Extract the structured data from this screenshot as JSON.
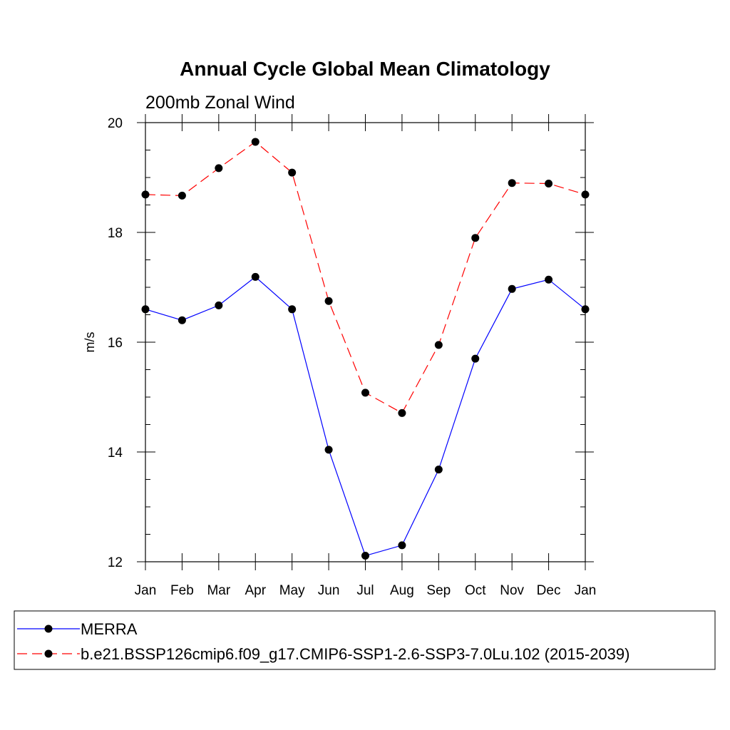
{
  "chart_data": {
    "type": "line",
    "title": "Annual Cycle Global Mean Climatology",
    "subtitle": "200mb Zonal Wind",
    "xlabel": "",
    "ylabel": "m/s",
    "categories": [
      "Jan",
      "Feb",
      "Mar",
      "Apr",
      "May",
      "Jun",
      "Jul",
      "Aug",
      "Sep",
      "Oct",
      "Nov",
      "Dec",
      "Jan"
    ],
    "ylim": [
      12,
      20
    ],
    "yticks": [
      "12",
      "14",
      "16",
      "18",
      "20"
    ],
    "yminor_step": 0.5,
    "grid": false,
    "legend_position": "bottom",
    "series": [
      {
        "name": "MERRA",
        "color": "#0000ff",
        "dash": "solid",
        "values": [
          16.6,
          16.4,
          16.67,
          17.19,
          16.6,
          14.04,
          12.11,
          12.3,
          13.68,
          15.7,
          16.97,
          17.14,
          16.6
        ]
      },
      {
        "name": "b.e21.BSSP126cmip6.f09_g17.CMIP6-SSP1-2.6-SSP3-7.0Lu.102 (2015-2039)",
        "color": "#ff0000",
        "dash": "dashed",
        "values": [
          18.69,
          18.67,
          19.17,
          19.65,
          19.09,
          16.75,
          15.08,
          14.71,
          15.95,
          17.9,
          18.9,
          18.89,
          18.69
        ]
      }
    ]
  }
}
